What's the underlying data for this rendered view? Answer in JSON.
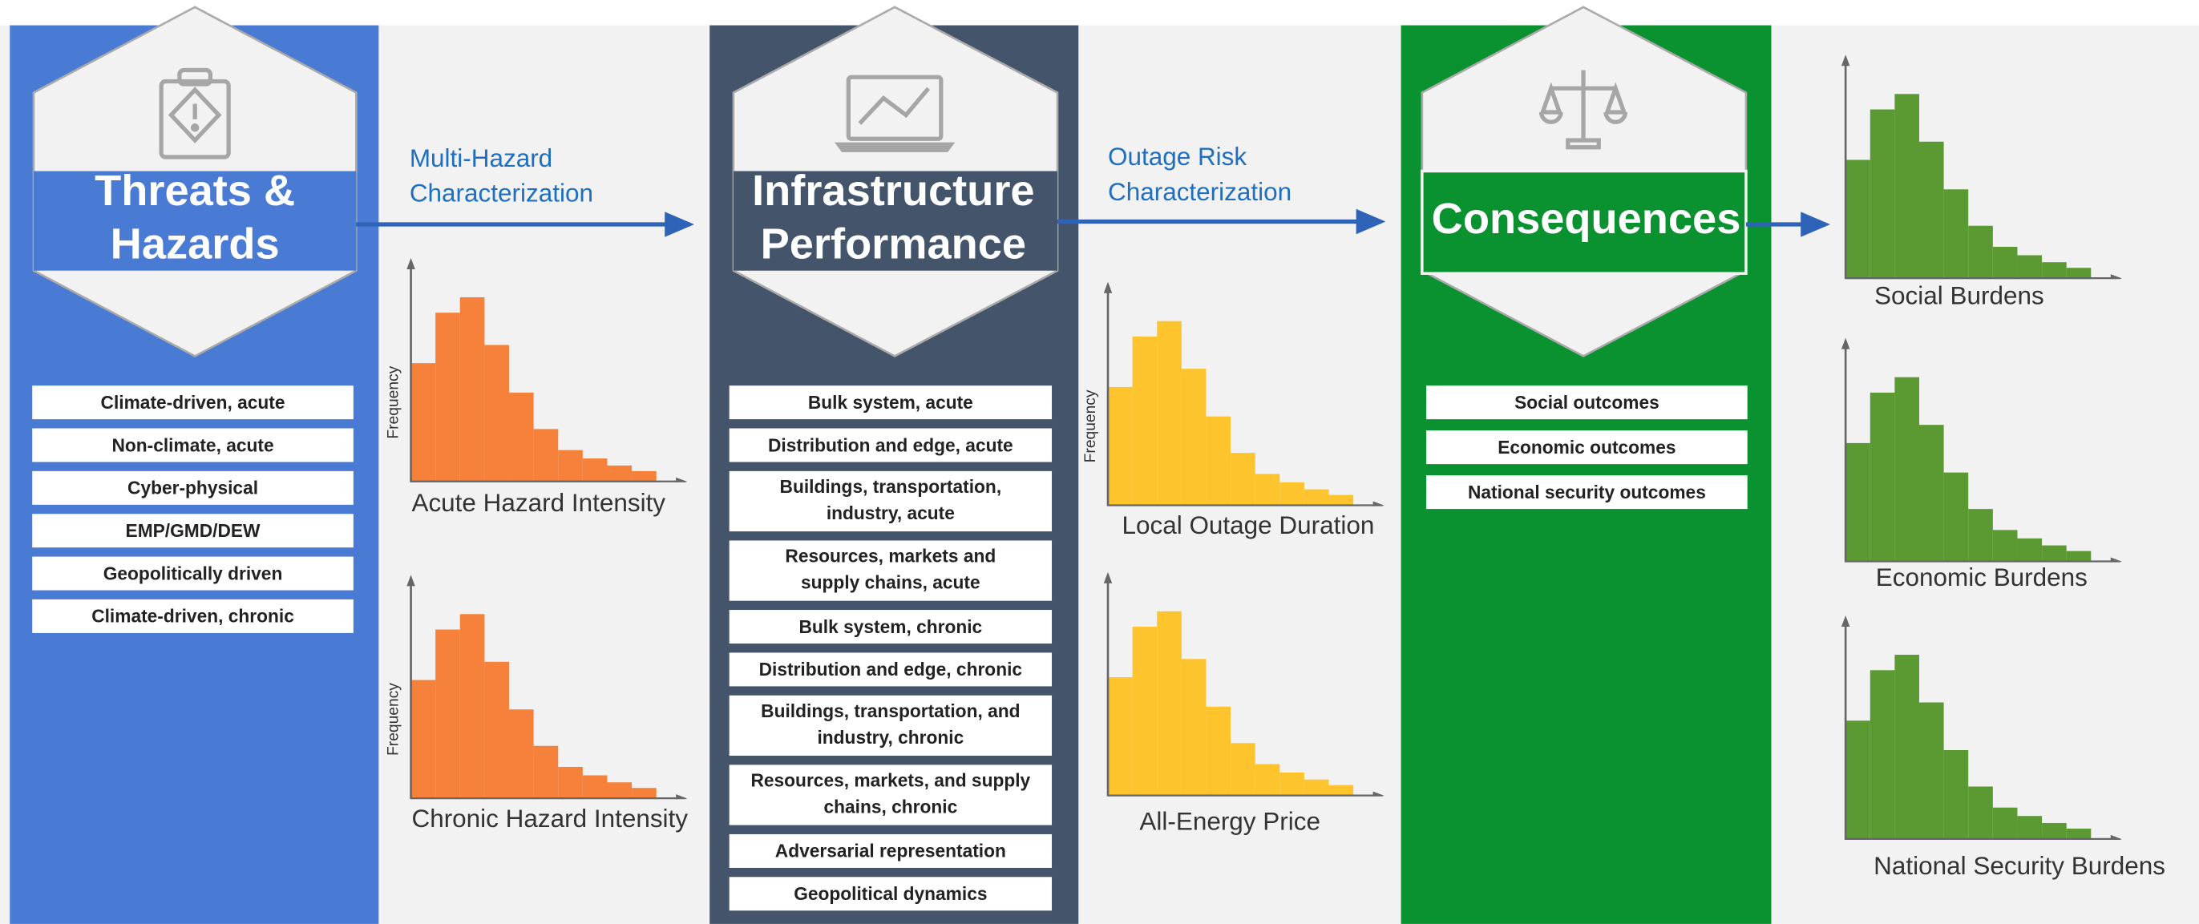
{
  "columns": [
    {
      "title": [
        "Threats &",
        "Hazards"
      ],
      "items": [
        "Climate-driven, acute",
        "Non-climate, acute",
        "Cyber-physical",
        "EMP/GMD/DEW",
        "Geopolitically driven",
        "Climate-driven, chronic"
      ]
    },
    {
      "title": [
        "Infrastructure",
        "Performance"
      ],
      "items": [
        "Bulk system, acute",
        "Distribution and edge, acute",
        [
          "Buildings, transportation,",
          "industry, acute"
        ],
        [
          "Resources, markets and",
          "supply chains, acute"
        ],
        "Bulk system, chronic",
        "Distribution and edge, chronic",
        [
          "Buildings, transportation, and",
          "industry, chronic"
        ],
        [
          "Resources, markets, and supply",
          "chains, chronic"
        ],
        "Adversarial representation",
        "Geopolitical dynamics"
      ]
    },
    {
      "title": [
        "Consequences"
      ],
      "items": [
        "Social outcomes",
        "Economic outcomes",
        "National security outcomes"
      ]
    }
  ],
  "arrow_labels": [
    [
      "Multi-Hazard",
      "Characterization"
    ],
    [
      "Outage Risk",
      "Characterization"
    ]
  ],
  "histograms": [
    {
      "label": "Acute Hazard Intensity",
      "y_label": "Frequency"
    },
    {
      "label": "Chronic Hazard Intensity",
      "y_label": "Frequency"
    },
    {
      "label": "Local Outage Duration",
      "y_label": "Frequency"
    },
    {
      "label": "All-Energy Price"
    },
    {
      "label": "Social Burdens"
    },
    {
      "label": "Economic Burdens"
    },
    {
      "label": "National Security Burdens"
    }
  ]
}
